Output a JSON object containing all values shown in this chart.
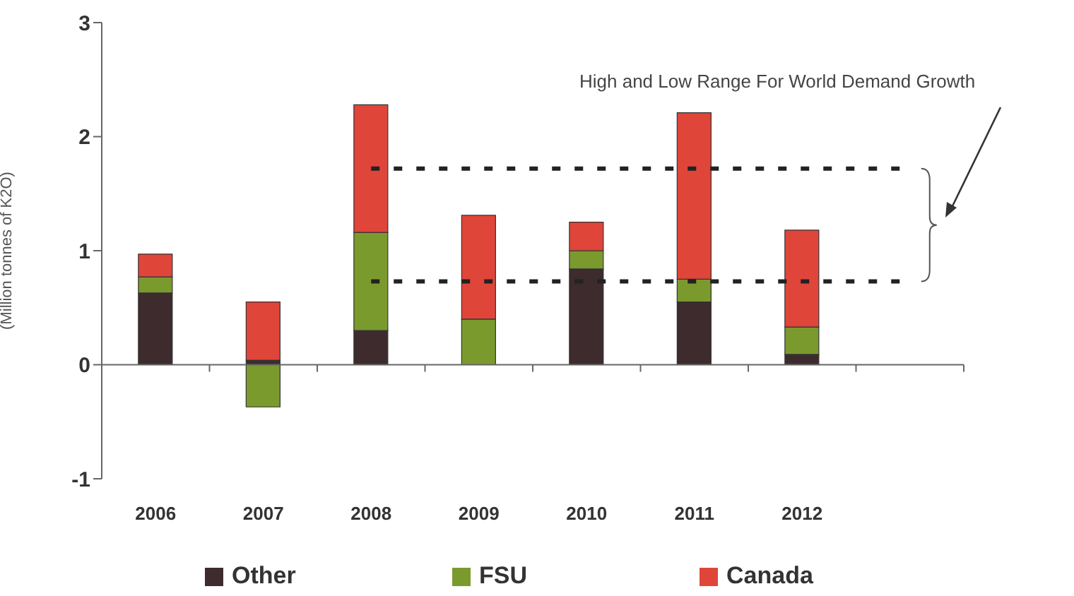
{
  "chart_data": {
    "type": "bar",
    "stacked": true,
    "ylabel": "(Million  tonnes of K2O)",
    "categories": [
      "2006",
      "2007",
      "2008",
      "2009",
      "2010",
      "2011",
      "2012",
      null
    ],
    "series": [
      {
        "name": "Other",
        "color": "#3d2b2d",
        "values": [
          0.63,
          0.04,
          0.3,
          0,
          0.84,
          0.55,
          0.09,
          null
        ]
      },
      {
        "name": "FSU",
        "color": "#7a9a2e",
        "values": [
          0.14,
          -0.37,
          0.86,
          0.4,
          0.16,
          0.2,
          0.24,
          null
        ]
      },
      {
        "name": "Canada",
        "color": "#e0453a",
        "values": [
          0.2,
          0.51,
          1.12,
          0.91,
          0.25,
          1.46,
          0.85,
          null
        ]
      }
    ],
    "ylim": [
      -1,
      3
    ],
    "yticks": [
      -1,
      0,
      1,
      2,
      3
    ],
    "legend": "bottom",
    "ref_lines": [
      {
        "axis": "y",
        "value": 1.72,
        "line_style": "dashed",
        "color": "#222222"
      },
      {
        "axis": "y",
        "value": 0.73,
        "line_style": "dashed",
        "color": "#222222"
      }
    ],
    "annotations": [
      "High and Low Range For World Demand Growth"
    ]
  }
}
